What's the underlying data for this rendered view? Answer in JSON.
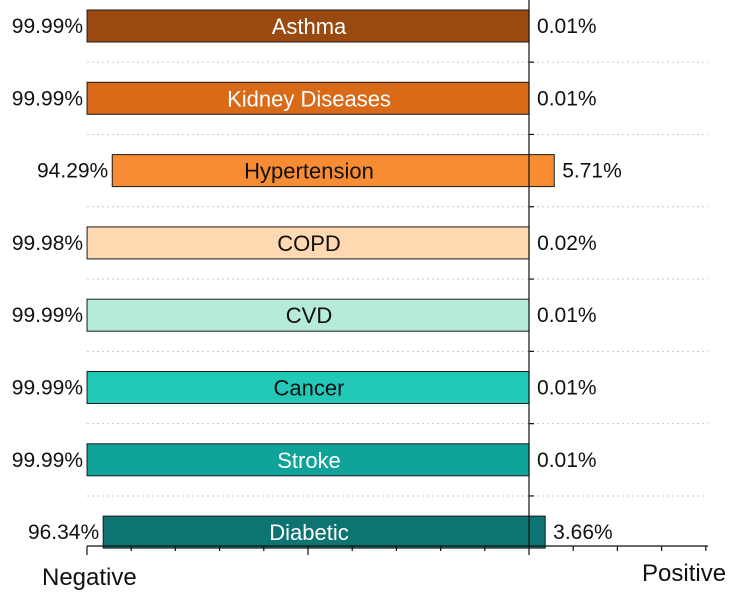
{
  "chart_data": {
    "type": "bar",
    "subtype": "diverging-horizontal",
    "categories": [
      "Asthma",
      "Kidney Diseases",
      "Hypertension",
      "COPD",
      "CVD",
      "Cancer",
      "Stroke",
      "Diabetic"
    ],
    "negative_pct": [
      99.99,
      99.99,
      94.29,
      99.98,
      99.99,
      99.99,
      99.99,
      96.34
    ],
    "positive_pct": [
      0.01,
      0.01,
      5.71,
      0.02,
      0.01,
      0.01,
      0.01,
      3.66
    ],
    "negative_labels": [
      "99.99%",
      "99.99%",
      "94.29%",
      "99.98%",
      "99.99%",
      "99.99%",
      "99.99%",
      "96.34%"
    ],
    "positive_labels": [
      "0.01%",
      "0.01%",
      "5.71%",
      "0.02%",
      "0.01%",
      "0.01%",
      "0.01%",
      "3.66%"
    ],
    "colors": [
      "#9a4a10",
      "#d96a18",
      "#f88c33",
      "#fdd8b0",
      "#b6ead9",
      "#22c8b8",
      "#0fa399",
      "#0d7472"
    ],
    "label_colors": [
      "#ffffff",
      "#ffffff",
      "#111111",
      "#111111",
      "#111111",
      "#111111",
      "#ffffff",
      "#ffffff"
    ],
    "xlabel_left": "Negative",
    "xlabel_right": "Positive",
    "xlim": [
      -100,
      40
    ],
    "grid": true
  }
}
